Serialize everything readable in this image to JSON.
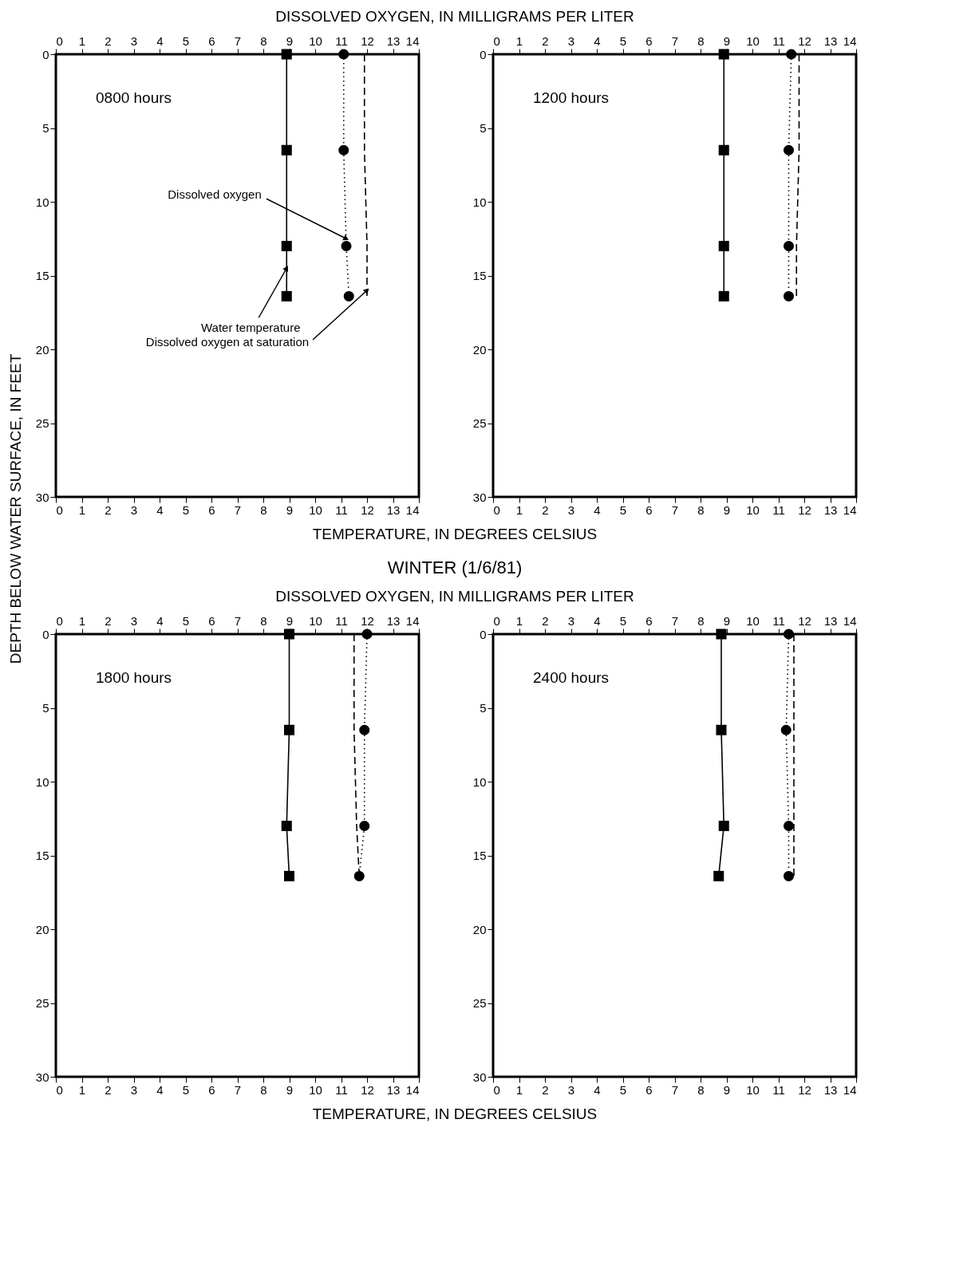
{
  "chart_data": [
    {
      "type": "line",
      "x2label": "DISSOLVED OXYGEN, IN MILLIGRAMS PER LITER",
      "xlabel": "TEMPERATURE, IN DEGREES CELSIUS",
      "ylabel": "DEPTH BELOW WATER SURFACE, IN FEET",
      "xlim": [
        0,
        14
      ],
      "xticks": [
        0,
        1,
        2,
        3,
        4,
        5,
        6,
        7,
        8,
        9,
        10,
        11,
        12,
        13,
        14
      ],
      "x2lim": [
        0,
        14
      ],
      "x2ticks": [
        0,
        1,
        2,
        3,
        4,
        5,
        6,
        7,
        8,
        9,
        10,
        11,
        12,
        13,
        14
      ],
      "ylim": [
        30,
        0
      ],
      "yticks": [
        0,
        5,
        10,
        15,
        20,
        25,
        30
      ],
      "annotations": [
        "0800 hours",
        {
          "text": "Dissolved oxygen",
          "x": 11.2,
          "y": 12.5
        },
        {
          "text": "Water temperature",
          "x": 8.9,
          "y": 14.5
        },
        {
          "text": "Dissolved oxygen at saturation",
          "x": 12.0,
          "y": 16
        }
      ],
      "series": [
        {
          "color": "#000000",
          "marker": "square",
          "line_style": "solid",
          "x": [
            8.9,
            8.9,
            8.9,
            8.9
          ],
          "values": [
            0,
            6.5,
            13,
            16.4
          ]
        },
        {
          "color": "#000000",
          "marker": "circle",
          "line_style": "dotted",
          "x": [
            11.1,
            11.1,
            11.2,
            11.3
          ],
          "values": [
            0,
            6.5,
            13,
            16.4
          ]
        },
        {
          "color": "#000000",
          "marker": "none",
          "line_style": "dashed",
          "x": [
            11.9,
            11.9,
            12.0,
            12.0
          ],
          "values": [
            0,
            6.5,
            13,
            16.4
          ]
        }
      ]
    },
    {
      "type": "line",
      "xlim": [
        0,
        14
      ],
      "xticks": [
        0,
        1,
        2,
        3,
        4,
        5,
        6,
        7,
        8,
        9,
        10,
        11,
        12,
        13,
        14
      ],
      "x2lim": [
        0,
        14
      ],
      "x2ticks": [
        0,
        1,
        2,
        3,
        4,
        5,
        6,
        7,
        8,
        9,
        10,
        11,
        12,
        13,
        14
      ],
      "ylim": [
        30,
        0
      ],
      "yticks": [
        0,
        5,
        10,
        15,
        20,
        25,
        30
      ],
      "annotations": [
        "1200 hours"
      ],
      "series": [
        {
          "color": "#000000",
          "marker": "square",
          "line_style": "solid",
          "x": [
            8.9,
            8.9,
            8.9,
            8.9
          ],
          "values": [
            0,
            6.5,
            13,
            16.4
          ]
        },
        {
          "color": "#000000",
          "marker": "circle",
          "line_style": "dotted",
          "x": [
            11.5,
            11.4,
            11.4,
            11.4
          ],
          "values": [
            0,
            6.5,
            13,
            16.4
          ]
        },
        {
          "color": "#000000",
          "marker": "none",
          "line_style": "dashed",
          "x": [
            11.8,
            11.8,
            11.7,
            11.7
          ],
          "values": [
            0,
            6.5,
            13,
            16.4
          ]
        }
      ]
    },
    {
      "type": "line",
      "title": "WINTER (1/6/81)",
      "x2label": "DISSOLVED OXYGEN, IN MILLIGRAMS PER LITER",
      "xlabel": "TEMPERATURE, IN DEGREES CELSIUS",
      "xlim": [
        0,
        14
      ],
      "xticks": [
        0,
        1,
        2,
        3,
        4,
        5,
        6,
        7,
        8,
        9,
        10,
        11,
        12,
        13,
        14
      ],
      "x2lim": [
        0,
        14
      ],
      "x2ticks": [
        0,
        1,
        2,
        3,
        4,
        5,
        6,
        7,
        8,
        9,
        10,
        11,
        12,
        13,
        14
      ],
      "ylim": [
        30,
        0
      ],
      "yticks": [
        0,
        5,
        10,
        15,
        20,
        25,
        30
      ],
      "annotations": [
        "1800 hours"
      ],
      "series": [
        {
          "color": "#000000",
          "marker": "square",
          "line_style": "solid",
          "x": [
            9.0,
            9.0,
            8.9,
            9.0
          ],
          "values": [
            0,
            6.5,
            13,
            16.4
          ]
        },
        {
          "color": "#000000",
          "marker": "circle",
          "line_style": "dotted",
          "x": [
            12.0,
            11.9,
            11.9,
            11.7
          ],
          "values": [
            0,
            6.5,
            13,
            16.4
          ]
        },
        {
          "color": "#000000",
          "marker": "none",
          "line_style": "dashed",
          "x": [
            11.5,
            11.5,
            11.6,
            11.7
          ],
          "values": [
            0,
            6.5,
            13,
            16.4
          ]
        }
      ]
    },
    {
      "type": "line",
      "xlim": [
        0,
        14
      ],
      "xticks": [
        0,
        1,
        2,
        3,
        4,
        5,
        6,
        7,
        8,
        9,
        10,
        11,
        12,
        13,
        14
      ],
      "x2lim": [
        0,
        14
      ],
      "x2ticks": [
        0,
        1,
        2,
        3,
        4,
        5,
        6,
        7,
        8,
        9,
        10,
        11,
        12,
        13,
        14
      ],
      "ylim": [
        30,
        0
      ],
      "yticks": [
        0,
        5,
        10,
        15,
        20,
        25,
        30
      ],
      "annotations": [
        "2400 hours"
      ],
      "series": [
        {
          "color": "#000000",
          "marker": "square",
          "line_style": "solid",
          "x": [
            8.8,
            8.8,
            8.9,
            8.7
          ],
          "values": [
            0,
            6.5,
            13,
            16.4
          ]
        },
        {
          "color": "#000000",
          "marker": "circle",
          "line_style": "dotted",
          "x": [
            11.4,
            11.3,
            11.4,
            11.4
          ],
          "values": [
            0,
            6.5,
            13,
            16.4
          ]
        },
        {
          "color": "#000000",
          "marker": "none",
          "line_style": "dashed",
          "x": [
            11.6,
            11.6,
            11.6,
            11.6
          ],
          "values": [
            0,
            6.5,
            13,
            16.4
          ]
        }
      ]
    }
  ]
}
